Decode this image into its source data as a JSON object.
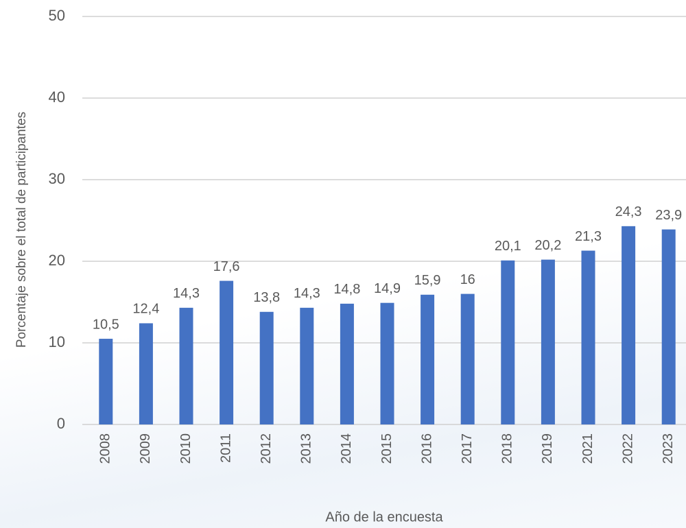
{
  "chart_data": {
    "type": "bar",
    "x_label": "Año de la encuesta",
    "y_label": "Porcentaje sobre el total de participantes",
    "categories": [
      "2008",
      "2009",
      "2010",
      "2011",
      "2012",
      "2013",
      "2014",
      "2015",
      "2016",
      "2017",
      "2018",
      "2019",
      "2021",
      "2022",
      "2023"
    ],
    "values": [
      10.5,
      12.4,
      14.3,
      17.6,
      13.8,
      14.3,
      14.8,
      14.9,
      15.9,
      16,
      20.1,
      20.2,
      21.3,
      24.3,
      23.9
    ],
    "value_labels": [
      "10,5",
      "12,4",
      "14,3",
      "17,6",
      "13,8",
      "14,3",
      "14,8",
      "14,9",
      "15,9",
      "16",
      "20,1",
      "20,2",
      "21,3",
      "24,3",
      "23,9"
    ],
    "color": "#4472c4",
    "ylim": [
      0,
      50
    ],
    "yticks": [
      0,
      10,
      20,
      30,
      40,
      50
    ],
    "grid": true
  }
}
